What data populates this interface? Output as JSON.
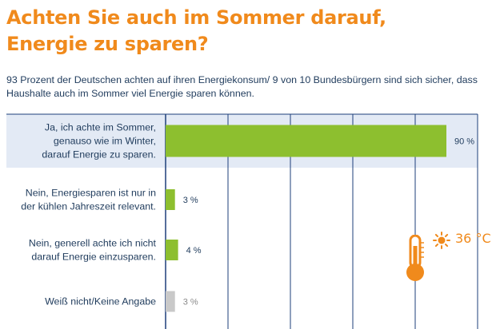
{
  "title_lines": [
    "Achten Sie auch im Sommer darauf,",
    "Energie zu sparen?"
  ],
  "subtitle_lines": [
    "93 Prozent der Deutschen achten auf ihren Energiekonsum/ 9 von 10 Bundesbürgern sind sich sicher, dass",
    "Haushalte auch im Sommer viel Energie sparen können."
  ],
  "temperature_label": "36 °C",
  "colors": {
    "title": "#f08a1c",
    "text": "#1f3b5c",
    "bar": "#8dbf2f",
    "bar_muted": "#c9c9c9",
    "highlight": "#e3eaf5",
    "grid": "#1e3f7a"
  },
  "icons": [
    "sun-icon",
    "thermometer-icon"
  ],
  "chart_data": {
    "type": "bar",
    "orientation": "horizontal",
    "categories": [
      [
        "Ja, ich achte im Sommer,",
        "genauso wie im Winter,",
        "darauf Energie zu sparen."
      ],
      [
        "Nein, Energiesparen ist nur in",
        "der kühlen Jahreszeit relevant."
      ],
      [
        "Nein, generell achte ich nicht",
        "darauf Energie einzusparen."
      ],
      [
        "Weiß nicht/Keine Angabe"
      ]
    ],
    "values": [
      90,
      3,
      4,
      3
    ],
    "value_labels": [
      "90 %",
      "3 %",
      "4 %",
      "3 %"
    ],
    "muted": [
      false,
      false,
      false,
      true
    ],
    "highlighted": [
      true,
      false,
      false,
      false
    ],
    "xlim": [
      0,
      100
    ],
    "grid": true,
    "title": "",
    "xlabel": "",
    "ylabel": ""
  }
}
